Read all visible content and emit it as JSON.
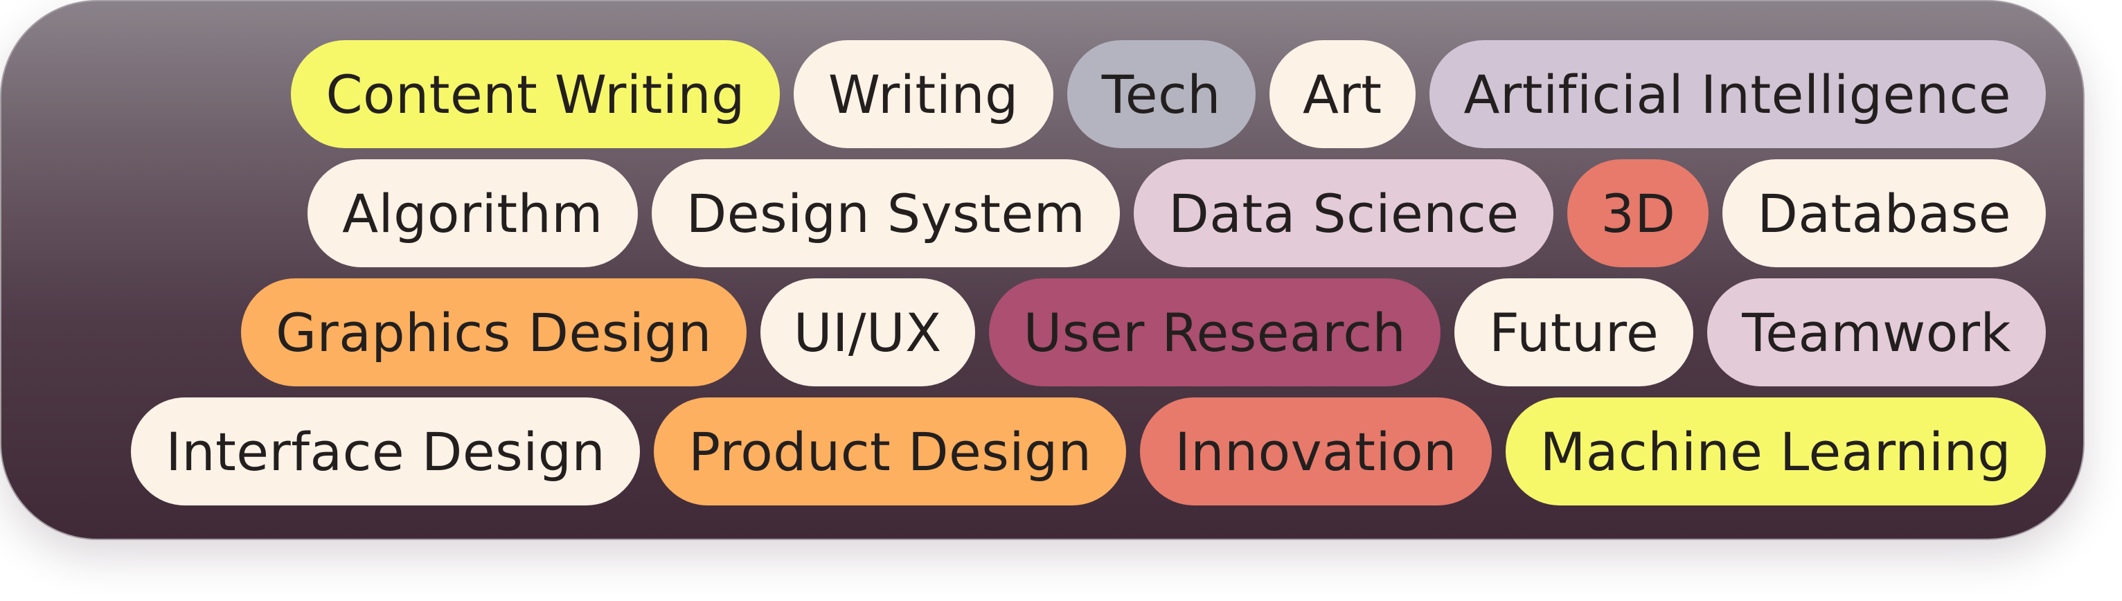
{
  "rows": [
    [
      {
        "label": "Content Writing",
        "color": "#f6f86a"
      },
      {
        "label": "Writing",
        "color": "#fdf2e6"
      },
      {
        "label": "Tech",
        "color": "#b3b4bf"
      },
      {
        "label": "Art",
        "color": "#fdf2e6"
      },
      {
        "label": "Artificial Intelligence",
        "color": "#d1c4d4"
      }
    ],
    [
      {
        "label": "Algorithm",
        "color": "#fdf2e6"
      },
      {
        "label": "Design System",
        "color": "#fdf2e6"
      },
      {
        "label": "Data Science",
        "color": "#e4cbd8"
      },
      {
        "label": "3D",
        "color": "#e77a6b"
      },
      {
        "label": "Database",
        "color": "#fdf2e6"
      }
    ],
    [
      {
        "label": "Graphics Design",
        "color": "#fdb05f"
      },
      {
        "label": "UI/UX",
        "color": "#fdf2e6"
      },
      {
        "label": "User Research",
        "color": "#ac4f70"
      },
      {
        "label": "Future",
        "color": "#fdf2e6"
      },
      {
        "label": "Teamwork",
        "color": "#e4cbd8"
      }
    ],
    [
      {
        "label": "Interface Design",
        "color": "#fdf2e6"
      },
      {
        "label": "Product Design",
        "color": "#fdb05f"
      },
      {
        "label": "Innovation",
        "color": "#e77a6b"
      },
      {
        "label": "Machine Learning",
        "color": "#f6f86a"
      }
    ]
  ]
}
